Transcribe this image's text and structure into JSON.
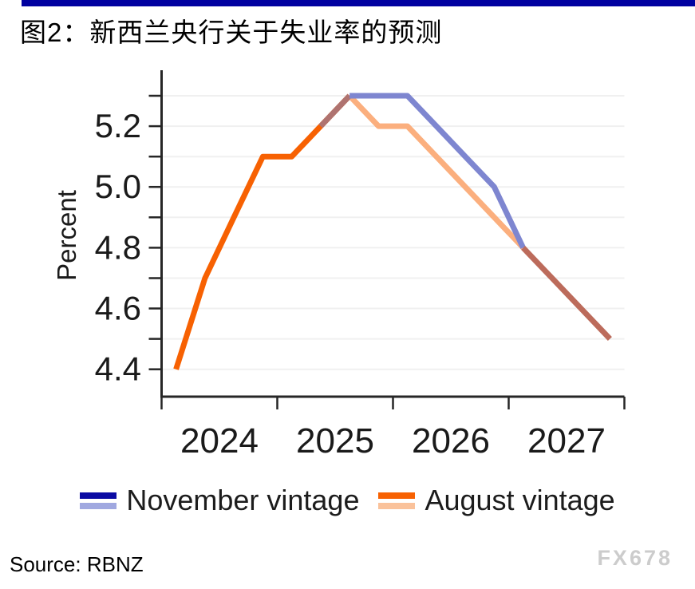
{
  "title": "图2：新西兰央行关于失业率的预测",
  "accent_bar_color": "#0101A0",
  "source": "Source: RBNZ",
  "watermark": "FX678",
  "legend": {
    "items": [
      {
        "label": "November vintage",
        "color_history": "#0B0BA3",
        "color_forecast": "#A0A8E0"
      },
      {
        "label": "August vintage",
        "color_history": "#F76102",
        "color_forecast": "#FAC29B"
      }
    ]
  },
  "chart_data": {
    "type": "line",
    "title": "图2：新西兰央行关于失业率的预测",
    "xlabel": "",
    "ylabel": "Percent",
    "x_unit": "quarter",
    "x_range_years": [
      2024,
      2028
    ],
    "x_tick_years": [
      2024,
      2025,
      2026,
      2027
    ],
    "ylim": [
      4.31,
      5.38
    ],
    "y_gridline_step": 0.1,
    "y_gridline_range": [
      4.4,
      5.3
    ],
    "y_labeled_ticks": [
      4.4,
      4.6,
      4.8,
      5.0,
      5.2
    ],
    "grid": "horizontal-only",
    "legend_position": "bottom",
    "series": [
      {
        "name": "August vintage",
        "start": "2024Q1",
        "values": [
          4.4,
          4.7,
          4.9,
          5.1,
          5.1,
          5.2,
          5.3,
          5.2,
          5.2,
          5.1,
          5.0,
          4.9,
          4.8,
          4.7,
          4.6,
          4.5
        ]
      },
      {
        "name": "November vintage",
        "start": "2025Q2",
        "values": [
          5.2,
          5.3,
          5.3,
          5.3,
          5.2,
          5.1,
          5.0,
          4.8,
          4.7,
          4.6,
          4.5
        ]
      }
    ],
    "render_segments": [
      {
        "name": "august-history",
        "color": "#F76102",
        "start_q": 0,
        "values": [
          4.4,
          4.7,
          4.9,
          5.1,
          5.1,
          5.2,
          5.3
        ]
      },
      {
        "name": "august-forecast",
        "color": "#FBAF7E",
        "start_q": 6,
        "values": [
          5.3,
          5.2,
          5.2,
          5.1,
          5.0,
          4.9,
          4.8
        ]
      },
      {
        "name": "november-history-overlap",
        "color": "#AF7370",
        "start_q": 5,
        "values": [
          5.2,
          5.3
        ]
      },
      {
        "name": "november-forecast",
        "color": "#7E86D0",
        "start_q": 6,
        "values": [
          5.3,
          5.3,
          5.3,
          5.2,
          5.1,
          5.0,
          4.8
        ]
      },
      {
        "name": "merged-tail",
        "color": "#BC6B5B",
        "start_q": 12,
        "values": [
          4.8,
          4.7,
          4.6,
          4.5
        ]
      }
    ]
  }
}
